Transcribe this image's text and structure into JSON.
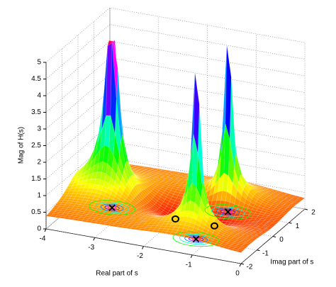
{
  "chart_data": {
    "type": "surface",
    "xlabel": "Real part of s",
    "ylabel": "Imag part of s",
    "zlabel": "Mag of H(s)",
    "xlim": [
      -4,
      0
    ],
    "ylim": [
      -2,
      2
    ],
    "zlim": [
      0,
      5
    ],
    "xticks": [
      -4,
      -3,
      -2,
      -1,
      0
    ],
    "yticks": [
      -2,
      -1,
      0,
      1,
      2
    ],
    "zticks": [
      0,
      0.5,
      1,
      1.5,
      2,
      2.5,
      3,
      3.5,
      4,
      4.5,
      5
    ],
    "poles": [
      {
        "re": -3.3,
        "im": 0
      },
      {
        "re": -1.25,
        "im": 1
      },
      {
        "re": -1.25,
        "im": -1
      }
    ],
    "zeros": [
      {
        "re": -2,
        "im": 0
      },
      {
        "re": -1.2,
        "im": 0
      }
    ],
    "grid": true,
    "colormap": "hsv"
  }
}
